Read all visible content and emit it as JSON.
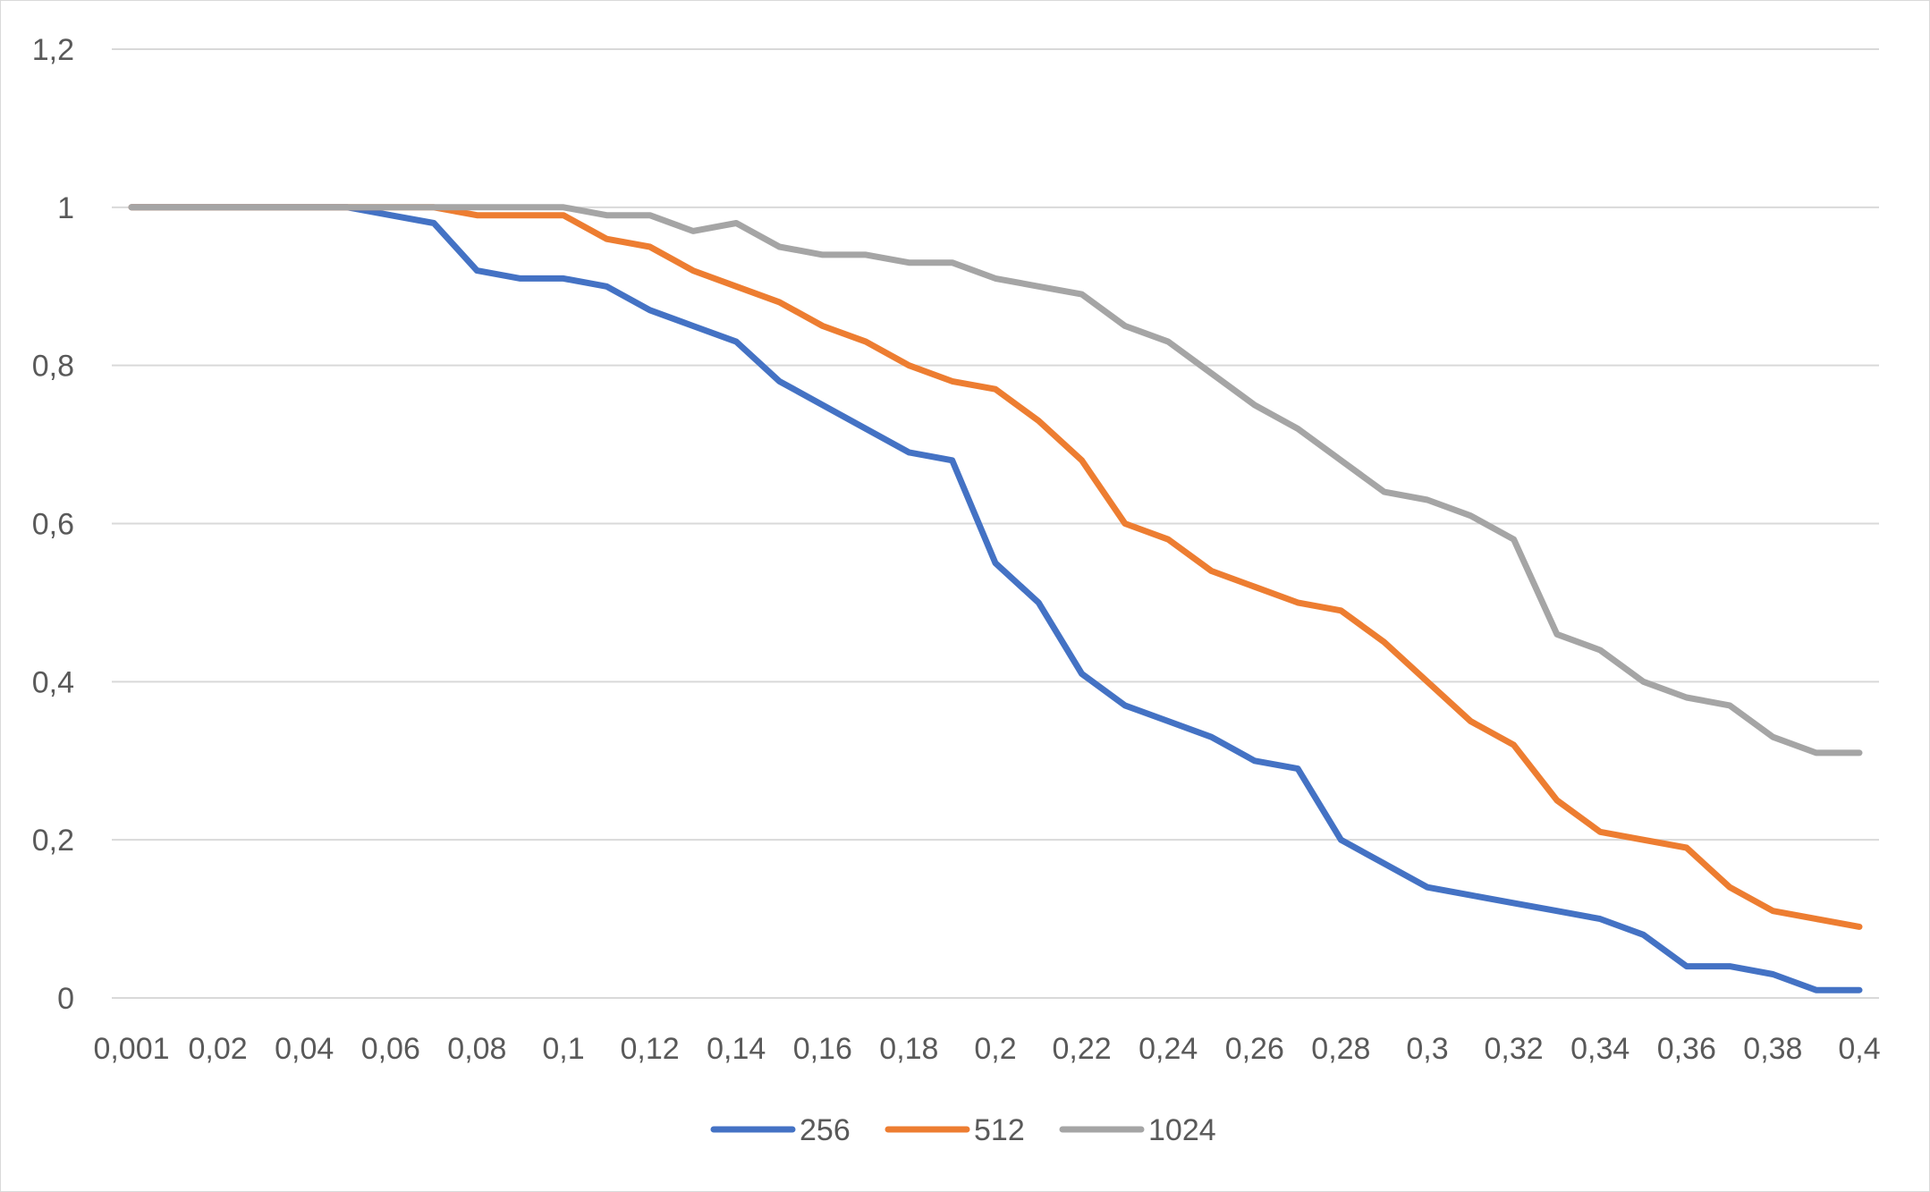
{
  "chart_data": {
    "type": "line",
    "title": "",
    "xlabel": "",
    "ylabel": "",
    "ylim": [
      0,
      1.2
    ],
    "yticks": [
      "0",
      "0,2",
      "0,4",
      "0,6",
      "0,8",
      "1",
      "1,2"
    ],
    "ytick_values": [
      0,
      0.2,
      0.4,
      0.6,
      0.8,
      1.0,
      1.2
    ],
    "x": [
      "0,001",
      "0,01",
      "0,02",
      "0,03",
      "0,04",
      "0,05",
      "0,06",
      "0,07",
      "0,08",
      "0,09",
      "0,1",
      "0,11",
      "0,12",
      "0,13",
      "0,14",
      "0,15",
      "0,16",
      "0,17",
      "0,18",
      "0,19",
      "0,2",
      "0,21",
      "0,22",
      "0,23",
      "0,24",
      "0,25",
      "0,26",
      "0,27",
      "0,28",
      "0,29",
      "0,3",
      "0,31",
      "0,32",
      "0,33",
      "0,34",
      "0,35",
      "0,36",
      "0,37",
      "0,38",
      "0,39",
      "0,4"
    ],
    "xtick_labels_shown": [
      "0,001",
      "0,02",
      "0,04",
      "0,06",
      "0,08",
      "0,1",
      "0,12",
      "0,14",
      "0,16",
      "0,18",
      "0,2",
      "0,22",
      "0,24",
      "0,26",
      "0,28",
      "0,3",
      "0,32",
      "0,34",
      "0,36",
      "0,38",
      "0,4"
    ],
    "grid": true,
    "legend_position": "bottom",
    "series": [
      {
        "name": "256",
        "color": "#4472C4",
        "values": [
          1,
          1,
          1,
          1,
          1,
          1,
          0.99,
          0.98,
          0.92,
          0.91,
          0.91,
          0.9,
          0.87,
          0.85,
          0.83,
          0.78,
          0.75,
          0.72,
          0.69,
          0.68,
          0.55,
          0.5,
          0.41,
          0.37,
          0.35,
          0.33,
          0.3,
          0.29,
          0.2,
          0.17,
          0.14,
          0.13,
          0.12,
          0.11,
          0.1,
          0.08,
          0.04,
          0.04,
          0.03,
          0.01,
          0.01
        ]
      },
      {
        "name": "512",
        "color": "#ED7D31",
        "values": [
          1,
          1,
          1,
          1,
          1,
          1,
          1,
          1,
          0.99,
          0.99,
          0.99,
          0.96,
          0.95,
          0.92,
          0.9,
          0.88,
          0.85,
          0.83,
          0.8,
          0.78,
          0.77,
          0.73,
          0.68,
          0.6,
          0.58,
          0.54,
          0.52,
          0.5,
          0.49,
          0.45,
          0.4,
          0.35,
          0.32,
          0.25,
          0.21,
          0.2,
          0.19,
          0.14,
          0.11,
          0.1,
          0.09
        ]
      },
      {
        "name": "1024",
        "color": "#A5A5A5",
        "values": [
          1,
          1,
          1,
          1,
          1,
          1,
          1,
          1,
          1,
          1,
          1,
          0.99,
          0.99,
          0.97,
          0.98,
          0.95,
          0.94,
          0.94,
          0.93,
          0.93,
          0.91,
          0.9,
          0.89,
          0.85,
          0.83,
          0.79,
          0.75,
          0.72,
          0.68,
          0.64,
          0.63,
          0.61,
          0.58,
          0.46,
          0.44,
          0.4,
          0.38,
          0.37,
          0.33,
          0.31,
          0.31
        ]
      }
    ]
  },
  "style": {
    "gridline_color": "#d9d9d9",
    "tick_text_color": "#595959"
  }
}
